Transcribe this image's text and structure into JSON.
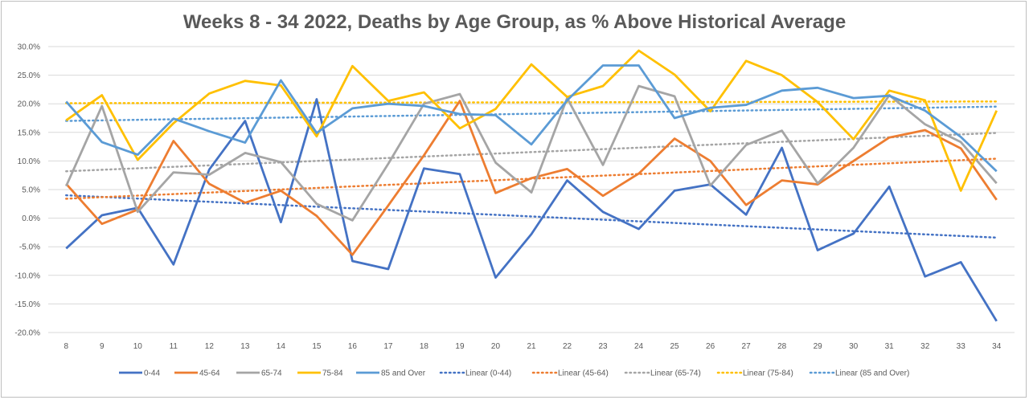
{
  "chart_data": {
    "type": "line",
    "title": "Weeks 8 - 34 2022, Deaths by Age Group, as % Above Historical Average",
    "xlabel": "",
    "ylabel": "",
    "x": [
      8,
      9,
      10,
      11,
      12,
      13,
      14,
      15,
      16,
      17,
      18,
      19,
      20,
      21,
      22,
      23,
      24,
      25,
      26,
      27,
      28,
      29,
      30,
      31,
      32,
      33,
      34
    ],
    "ylim": [
      -20,
      30
    ],
    "yticks": [
      "30.0%",
      "25.0%",
      "20.0%",
      "15.0%",
      "10.0%",
      "5.0%",
      "0.0%",
      "-5.0%",
      "-10.0%",
      "-15.0%",
      "-20.0%"
    ],
    "grid": "horizontal",
    "legend_position": "bottom",
    "series": [
      {
        "name": "0-44",
        "color": "#4472C4",
        "values": [
          -5.3,
          0.5,
          1.8,
          -8.1,
          8.5,
          17.0,
          -0.7,
          20.8,
          -7.5,
          -8.9,
          8.7,
          7.7,
          -10.4,
          -2.8,
          6.6,
          1.1,
          -1.9,
          4.8,
          5.9,
          0.6,
          12.3,
          -5.6,
          -2.7,
          5.5,
          -10.2,
          -7.7,
          -18.0
        ]
      },
      {
        "name": "45-64",
        "color": "#ED7D31",
        "values": [
          6.0,
          -1.0,
          1.5,
          13.5,
          6.0,
          2.7,
          4.8,
          0.4,
          -6.4,
          2.2,
          11.0,
          20.5,
          4.4,
          7.0,
          8.6,
          3.9,
          7.8,
          13.9,
          10.0,
          2.3,
          6.6,
          5.9,
          10.0,
          14.1,
          15.4,
          12.2,
          3.2
        ]
      },
      {
        "name": "65-74",
        "color": "#A5A5A5",
        "values": [
          5.6,
          19.6,
          1.1,
          8.0,
          7.6,
          11.4,
          9.8,
          2.5,
          -0.4,
          9.5,
          20.0,
          21.7,
          9.7,
          4.5,
          21.0,
          9.3,
          23.1,
          21.3,
          5.7,
          12.8,
          15.3,
          6.1,
          12.3,
          21.5,
          16.4,
          13.3,
          6.1
        ]
      },
      {
        "name": "75-84",
        "color": "#FFC000",
        "values": [
          17.1,
          21.5,
          10.2,
          16.6,
          21.8,
          24.0,
          23.2,
          14.3,
          26.6,
          20.5,
          22.0,
          15.7,
          19.1,
          26.9,
          21.2,
          23.1,
          29.3,
          25.1,
          18.7,
          27.5,
          25.0,
          20.3,
          13.8,
          22.3,
          20.6,
          4.8,
          18.8
        ]
      },
      {
        "name": "85 and Over",
        "color": "#5B9BD5",
        "values": [
          20.4,
          13.3,
          11.1,
          17.4,
          15.2,
          13.2,
          24.1,
          14.9,
          19.2,
          20.0,
          19.6,
          18.2,
          18.0,
          12.9,
          20.6,
          26.7,
          26.7,
          17.5,
          19.3,
          19.8,
          22.3,
          22.8,
          21.0,
          21.4,
          18.8,
          14.2,
          8.2
        ]
      }
    ],
    "trendlines": [
      {
        "name": "Linear (0-44)",
        "color": "#4472C4",
        "start": 4.0,
        "end": -3.4
      },
      {
        "name": "Linear (45-64)",
        "color": "#ED7D31",
        "start": 3.4,
        "end": 10.4
      },
      {
        "name": "Linear (65-74)",
        "color": "#A5A5A5",
        "start": 8.2,
        "end": 14.9
      },
      {
        "name": "Linear (75-84)",
        "color": "#FFC000",
        "start": 20.1,
        "end": 20.4
      },
      {
        "name": "Linear (85 and Over)",
        "color": "#5B9BD5",
        "start": 17.0,
        "end": 19.5
      }
    ]
  }
}
